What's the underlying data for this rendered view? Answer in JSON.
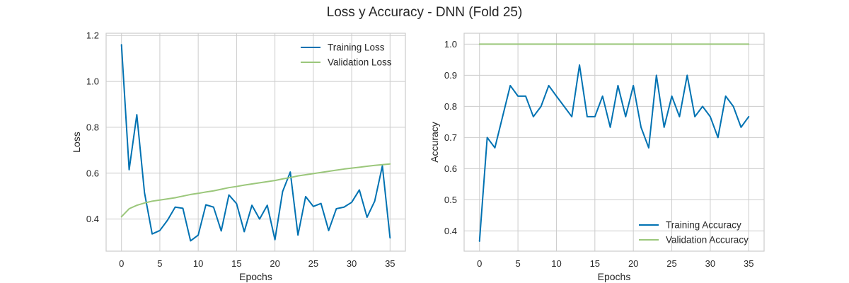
{
  "figure": {
    "title": "Loss y Accuracy - DNN (Fold 25)"
  },
  "colors": {
    "training": "#0072B2",
    "validation": "#9BC77B"
  },
  "chart_data": [
    {
      "type": "line",
      "title": "",
      "xlabel": "Epochs",
      "ylabel": "Loss",
      "xlim": [
        -2,
        37
      ],
      "ylim": [
        0.26,
        1.21
      ],
      "xticks": [
        0,
        5,
        10,
        15,
        20,
        25,
        30,
        35
      ],
      "yticks": [
        0.4,
        0.6,
        0.8,
        1.0,
        1.2
      ],
      "ytick_labels": [
        "0.4",
        "0.6",
        "0.8",
        "1.0",
        "1.2"
      ],
      "grid": true,
      "legend": "top-right",
      "x": [
        0,
        1,
        2,
        3,
        4,
        5,
        6,
        7,
        8,
        9,
        10,
        11,
        12,
        13,
        14,
        15,
        16,
        17,
        18,
        19,
        20,
        21,
        22,
        23,
        24,
        25,
        26,
        27,
        28,
        29,
        30,
        31,
        32,
        33,
        34,
        35
      ],
      "series": [
        {
          "name": "Training Loss",
          "color_key": "training",
          "values": [
            1.16,
            0.615,
            0.855,
            0.515,
            0.335,
            0.35,
            0.395,
            0.452,
            0.447,
            0.305,
            0.33,
            0.462,
            0.452,
            0.348,
            0.505,
            0.467,
            0.345,
            0.46,
            0.4,
            0.46,
            0.31,
            0.52,
            0.605,
            0.33,
            0.498,
            0.455,
            0.468,
            0.35,
            0.445,
            0.452,
            0.473,
            0.527,
            0.408,
            0.478,
            0.632,
            0.318
          ]
        },
        {
          "name": "Validation Loss",
          "color_key": "validation",
          "values": [
            0.41,
            0.445,
            0.46,
            0.47,
            0.478,
            0.483,
            0.488,
            0.493,
            0.5,
            0.507,
            0.512,
            0.518,
            0.523,
            0.53,
            0.537,
            0.542,
            0.548,
            0.553,
            0.558,
            0.563,
            0.568,
            0.575,
            0.581,
            0.588,
            0.593,
            0.598,
            0.603,
            0.608,
            0.613,
            0.618,
            0.622,
            0.626,
            0.63,
            0.634,
            0.637,
            0.64
          ]
        }
      ]
    },
    {
      "type": "line",
      "title": "",
      "xlabel": "Epochs",
      "ylabel": "Accuracy",
      "xlim": [
        -2,
        37
      ],
      "ylim": [
        0.335,
        1.035
      ],
      "xticks": [
        0,
        5,
        10,
        15,
        20,
        25,
        30,
        35
      ],
      "yticks": [
        0.4,
        0.5,
        0.6,
        0.7,
        0.8,
        0.9,
        1.0
      ],
      "ytick_labels": [
        "0.4",
        "0.5",
        "0.6",
        "0.7",
        "0.8",
        "0.9",
        "1.0"
      ],
      "grid": true,
      "legend": "lower-right",
      "x": [
        0,
        1,
        2,
        3,
        4,
        5,
        6,
        7,
        8,
        9,
        10,
        11,
        12,
        13,
        14,
        15,
        16,
        17,
        18,
        19,
        20,
        21,
        22,
        23,
        24,
        25,
        26,
        27,
        28,
        29,
        30,
        31,
        32,
        33,
        34,
        35
      ],
      "series": [
        {
          "name": "Training Accuracy",
          "color_key": "training",
          "values": [
            0.367,
            0.7,
            0.667,
            0.767,
            0.867,
            0.833,
            0.833,
            0.767,
            0.8,
            0.867,
            0.833,
            0.8,
            0.767,
            0.933,
            0.767,
            0.767,
            0.833,
            0.733,
            0.867,
            0.767,
            0.867,
            0.733,
            0.667,
            0.9,
            0.733,
            0.833,
            0.767,
            0.9,
            0.767,
            0.8,
            0.767,
            0.7,
            0.833,
            0.8,
            0.733,
            0.767
          ]
        },
        {
          "name": "Validation Accuracy",
          "color_key": "validation",
          "values": [
            1,
            1,
            1,
            1,
            1,
            1,
            1,
            1,
            1,
            1,
            1,
            1,
            1,
            1,
            1,
            1,
            1,
            1,
            1,
            1,
            1,
            1,
            1,
            1,
            1,
            1,
            1,
            1,
            1,
            1,
            1,
            1,
            1,
            1,
            1,
            1
          ]
        }
      ]
    }
  ]
}
